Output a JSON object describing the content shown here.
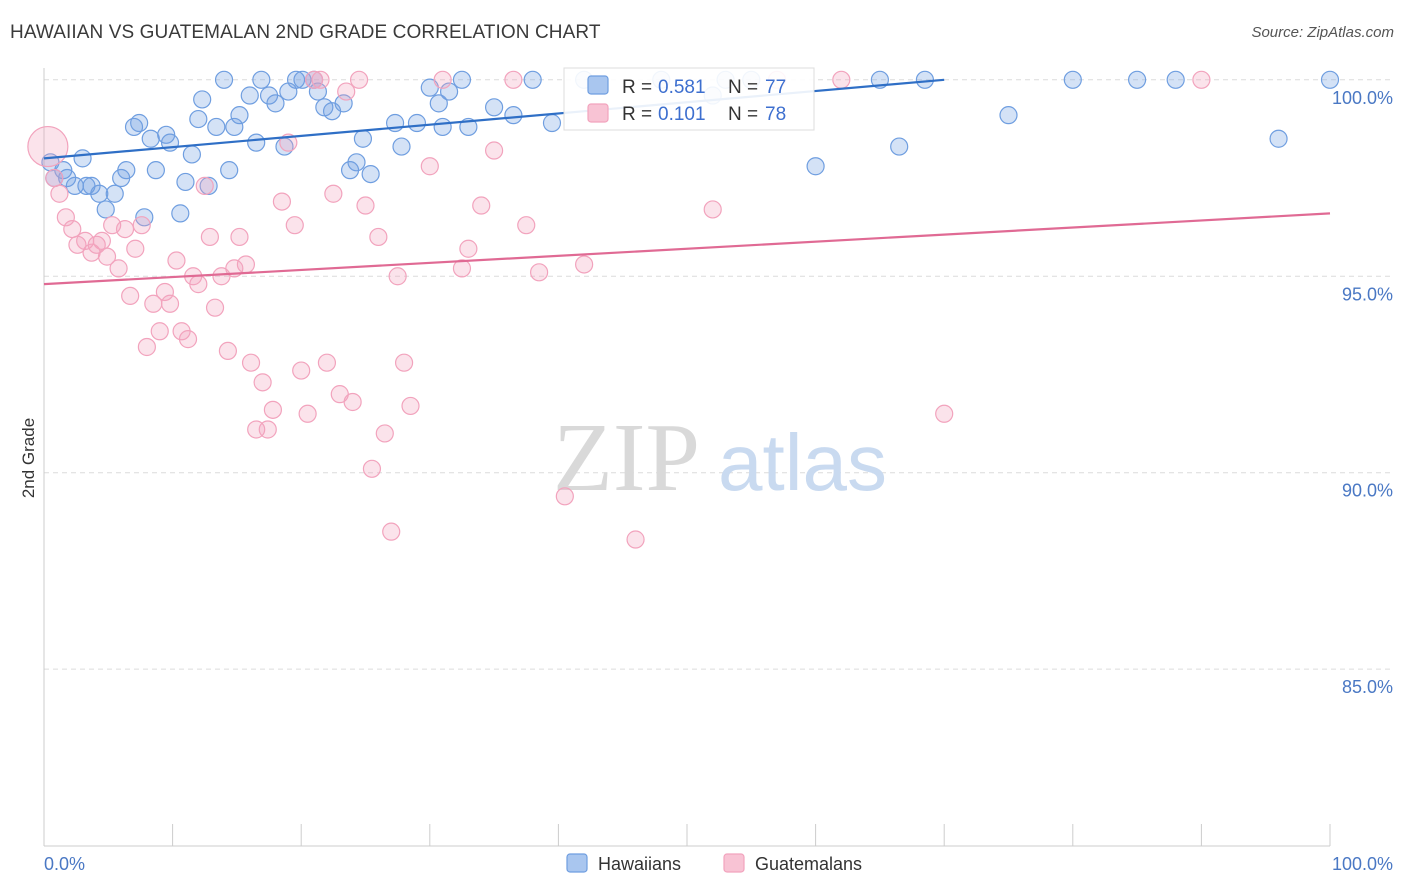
{
  "title": "HAWAIIAN VS GUATEMALAN 2ND GRADE CORRELATION CHART",
  "source": "Source: ZipAtlas.com",
  "watermark": {
    "zip": "ZIP",
    "atlas": "atlas"
  },
  "chart_data": {
    "type": "scatter",
    "ylabel": "2nd Grade",
    "xlim": [
      0,
      100
    ],
    "ylim": [
      80.5,
      100.3
    ],
    "x_tick_labels": [
      {
        "value": 0,
        "label": "0.0%"
      },
      {
        "value": 100,
        "label": "100.0%"
      }
    ],
    "y_tick_labels": [
      {
        "value": 100,
        "label": "100.0%"
      },
      {
        "value": 95,
        "label": "95.0%"
      },
      {
        "value": 90,
        "label": "90.0%"
      },
      {
        "value": 85,
        "label": "85.0%"
      }
    ],
    "grid": true,
    "legend": {
      "position": "bottom-center"
    },
    "stats": [
      {
        "series": "Hawaiians",
        "r_label": "R =",
        "r_value": "0.581",
        "n_label": "N =",
        "n_value": "77"
      },
      {
        "series": "Guatemalans",
        "r_label": "R =",
        "r_value": "0.101",
        "n_label": "N =",
        "n_value": "78"
      }
    ],
    "series": [
      {
        "name": "Hawaiians",
        "color": "#6f9ee0",
        "line_color": "#2f6fc6",
        "trend": {
          "x": [
            0,
            70
          ],
          "y": [
            98.0,
            100.0
          ]
        },
        "points": [
          [
            0.5,
            97.9
          ],
          [
            0.8,
            97.5
          ],
          [
            1.5,
            97.7
          ],
          [
            1.8,
            97.5
          ],
          [
            2.4,
            97.3
          ],
          [
            3.0,
            98.0
          ],
          [
            3.3,
            97.3
          ],
          [
            3.7,
            97.3
          ],
          [
            4.3,
            97.1
          ],
          [
            4.8,
            96.7
          ],
          [
            5.5,
            97.1
          ],
          [
            6.0,
            97.5
          ],
          [
            6.4,
            97.7
          ],
          [
            7.0,
            98.8
          ],
          [
            7.4,
            98.9
          ],
          [
            7.8,
            96.5
          ],
          [
            8.3,
            98.5
          ],
          [
            8.7,
            97.7
          ],
          [
            9.5,
            98.6
          ],
          [
            9.8,
            98.4
          ],
          [
            10.6,
            96.6
          ],
          [
            11.0,
            97.4
          ],
          [
            11.5,
            98.1
          ],
          [
            12.0,
            99.0
          ],
          [
            12.3,
            99.5
          ],
          [
            12.8,
            97.3
          ],
          [
            13.4,
            98.8
          ],
          [
            14.0,
            100.0
          ],
          [
            14.4,
            97.7
          ],
          [
            14.8,
            98.8
          ],
          [
            15.2,
            99.1
          ],
          [
            16.0,
            99.6
          ],
          [
            16.5,
            98.4
          ],
          [
            16.9,
            100.0
          ],
          [
            17.5,
            99.6
          ],
          [
            18.0,
            99.4
          ],
          [
            18.7,
            98.3
          ],
          [
            19.0,
            99.7
          ],
          [
            19.6,
            100.0
          ],
          [
            20.1,
            100.0
          ],
          [
            21.0,
            100.0
          ],
          [
            21.3,
            99.7
          ],
          [
            21.8,
            99.3
          ],
          [
            22.4,
            99.2
          ],
          [
            23.3,
            99.4
          ],
          [
            23.8,
            97.7
          ],
          [
            24.3,
            97.9
          ],
          [
            24.8,
            98.5
          ],
          [
            25.4,
            97.6
          ],
          [
            27.3,
            98.9
          ],
          [
            27.8,
            98.3
          ],
          [
            29.0,
            98.9
          ],
          [
            30.0,
            99.8
          ],
          [
            30.7,
            99.4
          ],
          [
            31.0,
            98.8
          ],
          [
            31.5,
            99.7
          ],
          [
            32.5,
            100.0
          ],
          [
            33.0,
            98.8
          ],
          [
            35.0,
            99.3
          ],
          [
            36.5,
            99.1
          ],
          [
            38.0,
            100.0
          ],
          [
            39.5,
            98.9
          ],
          [
            42.0,
            100.0
          ],
          [
            48.0,
            100.0
          ],
          [
            52.0,
            99.6
          ],
          [
            53.0,
            100.0
          ],
          [
            55.0,
            100.0
          ],
          [
            60.0,
            97.8
          ],
          [
            65.0,
            100.0
          ],
          [
            66.5,
            98.3
          ],
          [
            68.5,
            100.0
          ],
          [
            75.0,
            99.1
          ],
          [
            80.0,
            100.0
          ],
          [
            85.0,
            100.0
          ],
          [
            88.0,
            100.0
          ],
          [
            96.0,
            98.5
          ],
          [
            100.0,
            100.0
          ]
        ]
      },
      {
        "name": "Guatemalans",
        "color": "#f2a3bd",
        "line_color": "#e06a94",
        "trend": {
          "x": [
            0,
            100
          ],
          "y": [
            94.8,
            96.6
          ]
        },
        "points": [
          [
            0.3,
            98.3
          ],
          [
            0.8,
            97.5
          ],
          [
            1.2,
            97.1
          ],
          [
            1.7,
            96.5
          ],
          [
            2.2,
            96.2
          ],
          [
            2.6,
            95.8
          ],
          [
            3.2,
            95.9
          ],
          [
            3.7,
            95.6
          ],
          [
            4.1,
            95.8
          ],
          [
            4.5,
            95.9
          ],
          [
            4.9,
            95.5
          ],
          [
            5.3,
            96.3
          ],
          [
            5.8,
            95.2
          ],
          [
            6.3,
            96.2
          ],
          [
            6.7,
            94.5
          ],
          [
            7.1,
            95.7
          ],
          [
            7.6,
            96.3
          ],
          [
            8.0,
            93.2
          ],
          [
            8.5,
            94.3
          ],
          [
            9.0,
            93.6
          ],
          [
            9.4,
            94.6
          ],
          [
            9.8,
            94.3
          ],
          [
            10.3,
            95.4
          ],
          [
            10.7,
            93.6
          ],
          [
            11.2,
            93.4
          ],
          [
            11.6,
            95.0
          ],
          [
            12.0,
            94.8
          ],
          [
            12.5,
            97.3
          ],
          [
            12.9,
            96.0
          ],
          [
            13.3,
            94.2
          ],
          [
            13.8,
            95.0
          ],
          [
            14.3,
            93.1
          ],
          [
            14.8,
            95.2
          ],
          [
            15.2,
            96.0
          ],
          [
            15.7,
            95.3
          ],
          [
            16.1,
            92.8
          ],
          [
            16.5,
            91.1
          ],
          [
            17.0,
            92.3
          ],
          [
            17.4,
            91.1
          ],
          [
            17.8,
            91.6
          ],
          [
            18.5,
            96.9
          ],
          [
            19.0,
            98.4
          ],
          [
            19.5,
            96.3
          ],
          [
            20.0,
            92.6
          ],
          [
            20.5,
            91.5
          ],
          [
            21.0,
            100.0
          ],
          [
            21.5,
            100.0
          ],
          [
            22.0,
            92.8
          ],
          [
            22.5,
            97.1
          ],
          [
            23.0,
            92.0
          ],
          [
            23.5,
            99.7
          ],
          [
            24.0,
            91.8
          ],
          [
            24.5,
            100.0
          ],
          [
            25.0,
            96.8
          ],
          [
            25.5,
            90.1
          ],
          [
            26.0,
            96.0
          ],
          [
            26.5,
            91.0
          ],
          [
            27.0,
            88.5
          ],
          [
            27.5,
            95.0
          ],
          [
            28.0,
            92.8
          ],
          [
            28.5,
            91.7
          ],
          [
            30.0,
            97.8
          ],
          [
            31.0,
            100.0
          ],
          [
            32.5,
            95.2
          ],
          [
            33.0,
            95.7
          ],
          [
            34.0,
            96.8
          ],
          [
            35.0,
            98.2
          ],
          [
            36.5,
            100.0
          ],
          [
            37.5,
            96.3
          ],
          [
            38.5,
            95.1
          ],
          [
            40.5,
            89.4
          ],
          [
            42.0,
            95.3
          ],
          [
            46.0,
            88.3
          ],
          [
            52.0,
            96.7
          ],
          [
            57.0,
            100.0
          ],
          [
            62.0,
            100.0
          ],
          [
            70.0,
            91.5
          ],
          [
            90.0,
            100.0
          ]
        ]
      }
    ]
  }
}
